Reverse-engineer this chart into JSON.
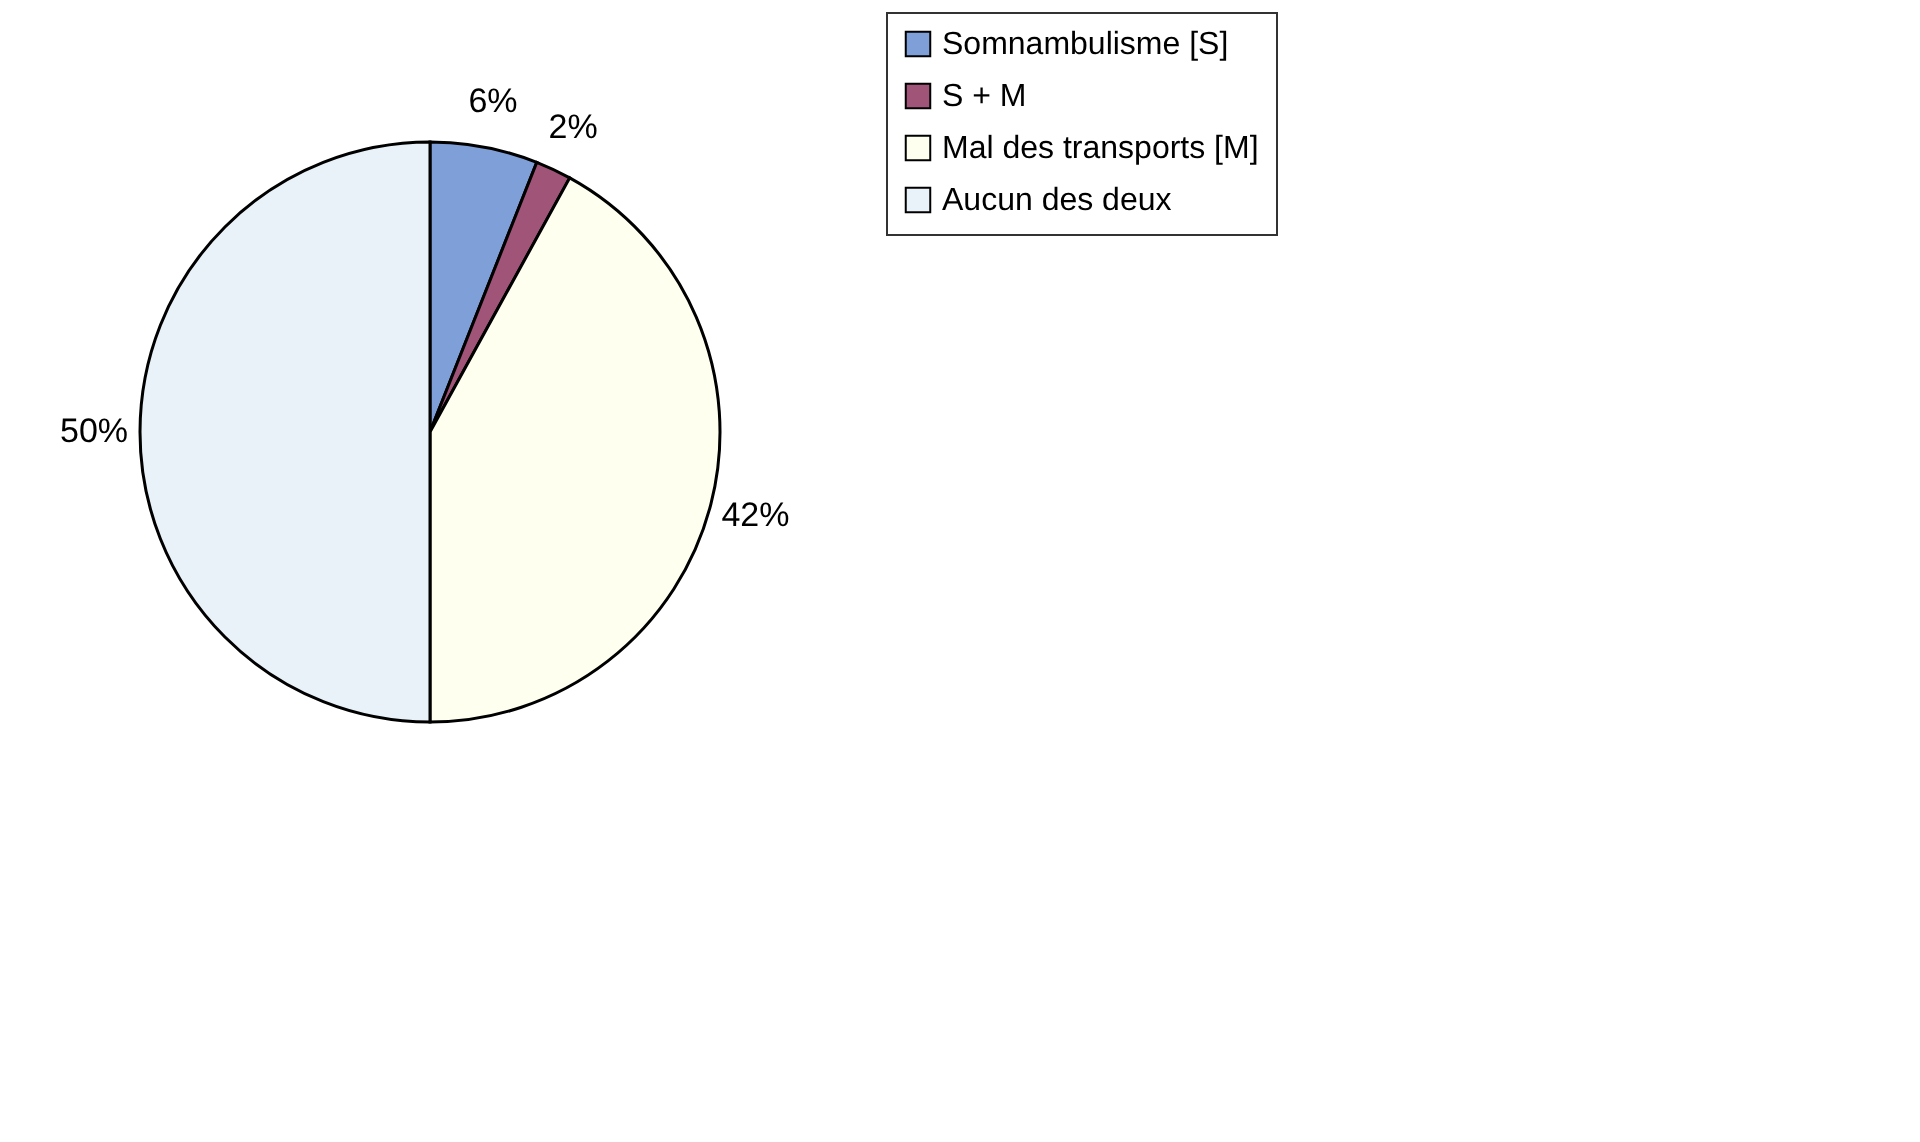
{
  "chart_data": {
    "type": "pie",
    "categories": [
      "Somnambulisme [S]",
      "S + M",
      "Mal des transports [M]",
      "Aucun des deux"
    ],
    "values": [
      6,
      2,
      42,
      50
    ],
    "colors": [
      "#7f9fd8",
      "#a05478",
      "#fffff0",
      "#e8f2f8"
    ],
    "value_labels": [
      "6%",
      "2%",
      "42%",
      "50%"
    ],
    "legend": "right"
  }
}
